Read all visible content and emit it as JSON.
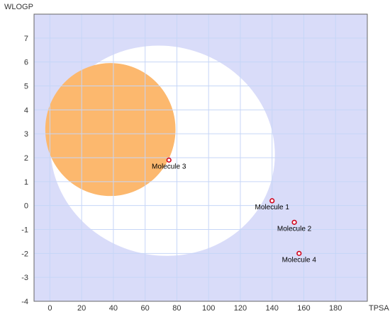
{
  "chart_data": {
    "type": "scatter",
    "xlabel": "TPSA",
    "ylabel": "WLOGP",
    "xlim": [
      -10,
      200
    ],
    "ylim": [
      -4,
      8
    ],
    "x_ticks": [
      0,
      20,
      40,
      60,
      80,
      100,
      120,
      140,
      160,
      180
    ],
    "y_ticks": [
      -4,
      -3,
      -2,
      -1,
      0,
      1,
      2,
      3,
      4,
      5,
      6,
      7
    ],
    "grid": true,
    "colors": {
      "background": "#d9dcf9",
      "grid": "#c6d6f7",
      "white_region": "#ffffff",
      "yolk_region": "#fcb86e",
      "point": "#d0021b"
    },
    "regions": [
      {
        "shape": "ellipse",
        "color": "white_region",
        "cx": 71.051,
        "cy": 2.292,
        "rx": 142.081,
        "ry": 8.74,
        "angle_deg": -1.031
      },
      {
        "shape": "ellipse",
        "color": "yolk_region",
        "cx": 38.117,
        "cy": 3.177,
        "rx": 82.061,
        "ry": 5.557,
        "angle_deg": -0.171
      }
    ],
    "points": [
      {
        "label": "Molecule 1",
        "x": 140,
        "y": 0.2
      },
      {
        "label": "Molecule 2",
        "x": 154,
        "y": -0.7
      },
      {
        "label": "Molecule 3",
        "x": 75,
        "y": 1.9
      },
      {
        "label": "Molecule 4",
        "x": 157,
        "y": -2.0
      }
    ]
  }
}
